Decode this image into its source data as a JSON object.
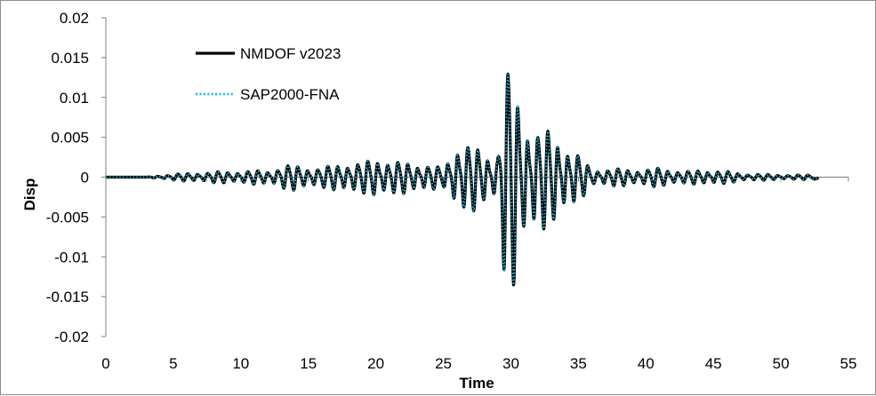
{
  "chart_data": {
    "type": "line",
    "title": "",
    "xlabel": "Time",
    "ylabel": "Disp",
    "xlim": [
      0,
      55
    ],
    "ylim": [
      -0.02,
      0.02
    ],
    "xticks": [
      0,
      5,
      10,
      15,
      20,
      25,
      30,
      35,
      40,
      45,
      50,
      55
    ],
    "yticks": [
      0.02,
      0.015,
      0.01,
      0.005,
      0,
      -0.005,
      -0.01,
      -0.015,
      -0.02
    ],
    "ytick_labels": [
      "0.02",
      "0.015",
      "0.01",
      "0.005",
      "0",
      "-0.005",
      "-0.01",
      "-0.015",
      "-0.02"
    ],
    "grid": false,
    "legend_position": "top-left",
    "series": [
      {
        "name": "NMDOF v2023",
        "color": "#000000",
        "style": "solid",
        "envelope": {
          "t": [
            0,
            3,
            5,
            8,
            10,
            12,
            13,
            14,
            16,
            17.5,
            19,
            20,
            21.5,
            23,
            25,
            26,
            27,
            28,
            29,
            29.5,
            30,
            30.5,
            31,
            32,
            33,
            34,
            35,
            36,
            37,
            39,
            41,
            43,
            45,
            47,
            50,
            52,
            52.8
          ],
          "amp": [
            0,
            0,
            0.0004,
            0.0007,
            0.0008,
            0.0009,
            0.0015,
            0.0016,
            0.0012,
            0.002,
            0.0018,
            0.0028,
            0.002,
            0.002,
            0.0012,
            0.0048,
            0.0042,
            0.0035,
            0.003,
            0.0125,
            0.015,
            0.011,
            0.0085,
            0.0065,
            0.006,
            0.0048,
            0.003,
            0.001,
            0.0012,
            0.001,
            0.0012,
            0.0008,
            0.001,
            0.0005,
            0.0003,
            0.0003,
            0.0003
          ]
        },
        "end_value": -0.0003
      },
      {
        "name": "SAP2000-FNA",
        "color": "#1fb4d8",
        "style": "dotted",
        "matches": "NMDOF v2023"
      }
    ]
  }
}
